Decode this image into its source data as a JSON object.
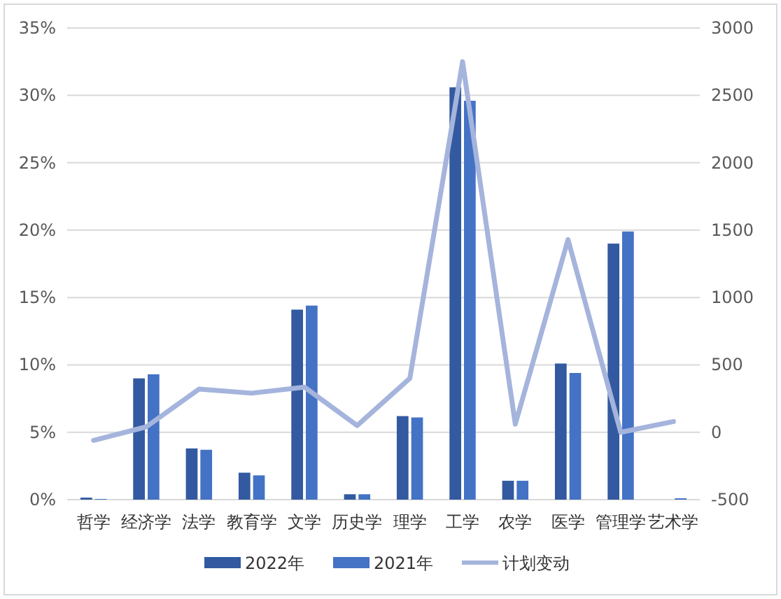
{
  "chart_data": {
    "type": "bar",
    "categories": [
      "哲学",
      "经济学",
      "法学",
      "教育学",
      "文学",
      "历史学",
      "理学",
      "工学",
      "农学",
      "医学",
      "管理学",
      "艺术学"
    ],
    "series": [
      {
        "name": "2022年",
        "color": "#335aa0",
        "values": [
          0.15,
          9.0,
          3.8,
          2.0,
          14.1,
          0.4,
          6.2,
          30.6,
          1.4,
          10.1,
          19.0,
          0
        ]
      },
      {
        "name": "2021年",
        "color": "#4472c4",
        "values": [
          0.05,
          9.3,
          3.7,
          1.8,
          14.4,
          0.4,
          6.1,
          29.6,
          1.4,
          9.4,
          19.9,
          0.1
        ]
      },
      {
        "name": "计划变动",
        "color": "#a5b4dc",
        "type": "line",
        "axis": "y2",
        "values": [
          -60,
          40,
          320,
          290,
          335,
          50,
          400,
          2750,
          60,
          1430,
          0,
          80
        ]
      }
    ],
    "ylim": [
      0,
      35
    ],
    "yticks": [
      {
        "value": 0,
        "label": "0%"
      },
      {
        "value": 5,
        "label": "5%"
      },
      {
        "value": 10,
        "label": "10%"
      },
      {
        "value": 15,
        "label": "15%"
      },
      {
        "value": 20,
        "label": "20%"
      },
      {
        "value": 25,
        "label": "25%"
      },
      {
        "value": 30,
        "label": "30%"
      },
      {
        "value": 35,
        "label": "35%"
      }
    ],
    "y2lim": [
      -500,
      3000
    ],
    "y2ticks": [
      -500,
      0,
      500,
      1000,
      1500,
      2000,
      2500,
      3000
    ],
    "grid": "y",
    "legend": "bottom"
  }
}
